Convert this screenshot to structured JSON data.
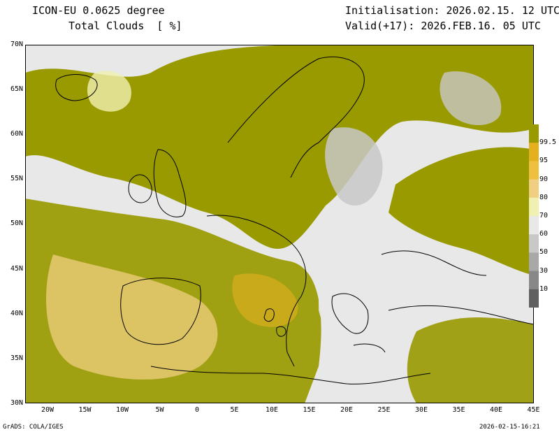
{
  "header": {
    "model": "ICON-EU 0.0625 degree",
    "field": "Total Clouds  [ %]",
    "init": "Initialisation: 2026.02.15. 12 UTC",
    "valid": "Valid(+17): 2026.FEB.16. 05 UTC"
  },
  "lat_labels": [
    "70N",
    "65N",
    "60N",
    "55N",
    "50N",
    "45N",
    "40N",
    "35N",
    "30N"
  ],
  "lon_labels": [
    "20W",
    "15W",
    "10W",
    "5W",
    "0",
    "5E",
    "10E",
    "15E",
    "20E",
    "25E",
    "30E",
    "35E",
    "40E",
    "45E"
  ],
  "legend": {
    "labels": [
      "99.5",
      "95",
      "90",
      "80",
      "70",
      "60",
      "50",
      "30",
      "10"
    ],
    "colors": [
      "#999900",
      "#e5b020",
      "#efc040",
      "#f0d080",
      "#f0f0b0",
      "#e8e8e8",
      "#c8c8c8",
      "#a8a8a8",
      "#888888",
      "#606060"
    ]
  },
  "footer": {
    "left": "GrADS: COLA/IGES",
    "right": "2026-02-15-16:21"
  }
}
